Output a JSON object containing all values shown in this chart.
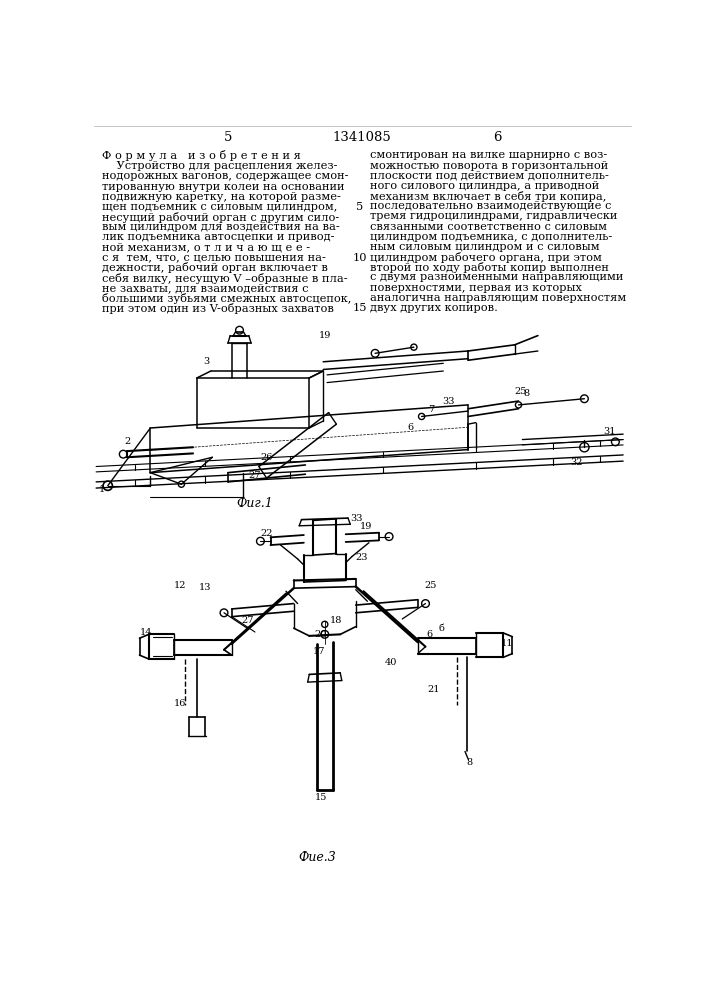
{
  "page_numbers_left": "5",
  "page_numbers_center": "1341085",
  "page_numbers_right": "6",
  "left_column_title": "Ф о р м у л а   и з о б р е т е н и я",
  "left_col": [
    "    Устройство для расцепления желез-",
    "нодорожных вагонов, содержащее смон-",
    "тированную внутри колеи на основании",
    "подвижную каретку, на которой разме-",
    "щен подъемник с силовым цилиндром,",
    "несущий рабочий орган с другим сило-",
    "вым цилиндром для воздействия на ва-",
    "лик подъемника автосцепки и привод-",
    "ной механизм, о т л и ч а ю щ е е -",
    "с я  тем, что, с целью повышения на-",
    "дежности, рабочий орган включает в",
    "себя вилку, несущую V –образные в пла-",
    "не захваты, для взаимодействия с",
    "большими зубьями смежных автосцепок,",
    "при этом один из V-образных захватов"
  ],
  "right_col": [
    "смонтирован на вилке шарнирно с воз-",
    "можностью поворота в горизонтальной",
    "плоскости под действием дополнитель-",
    "ного силового цилиндра, а приводной",
    "механизм включает в себя три копира,",
    "последовательно взаимодействующие с",
    "тремя гидроцилиндрами, гидравлически",
    "связанными соответственно с силовым",
    "цилиндром подъемника, с дополнитель-",
    "ным силовым цилиндром и с силовым",
    "цилиндром рабочего органа, при этом",
    "второй по ходу работы копир выполнен",
    "с двумя разноименными направляющими",
    "поверхностями, первая из которых",
    "аналогична направляющим поверхностям",
    "двух других копиров."
  ],
  "fig1_label": "Фиг.1",
  "fig3_label": "Фие.3",
  "bg_color": "#ffffff",
  "text_color": "#000000",
  "body_fs": 8.2,
  "page_fs": 9.5
}
